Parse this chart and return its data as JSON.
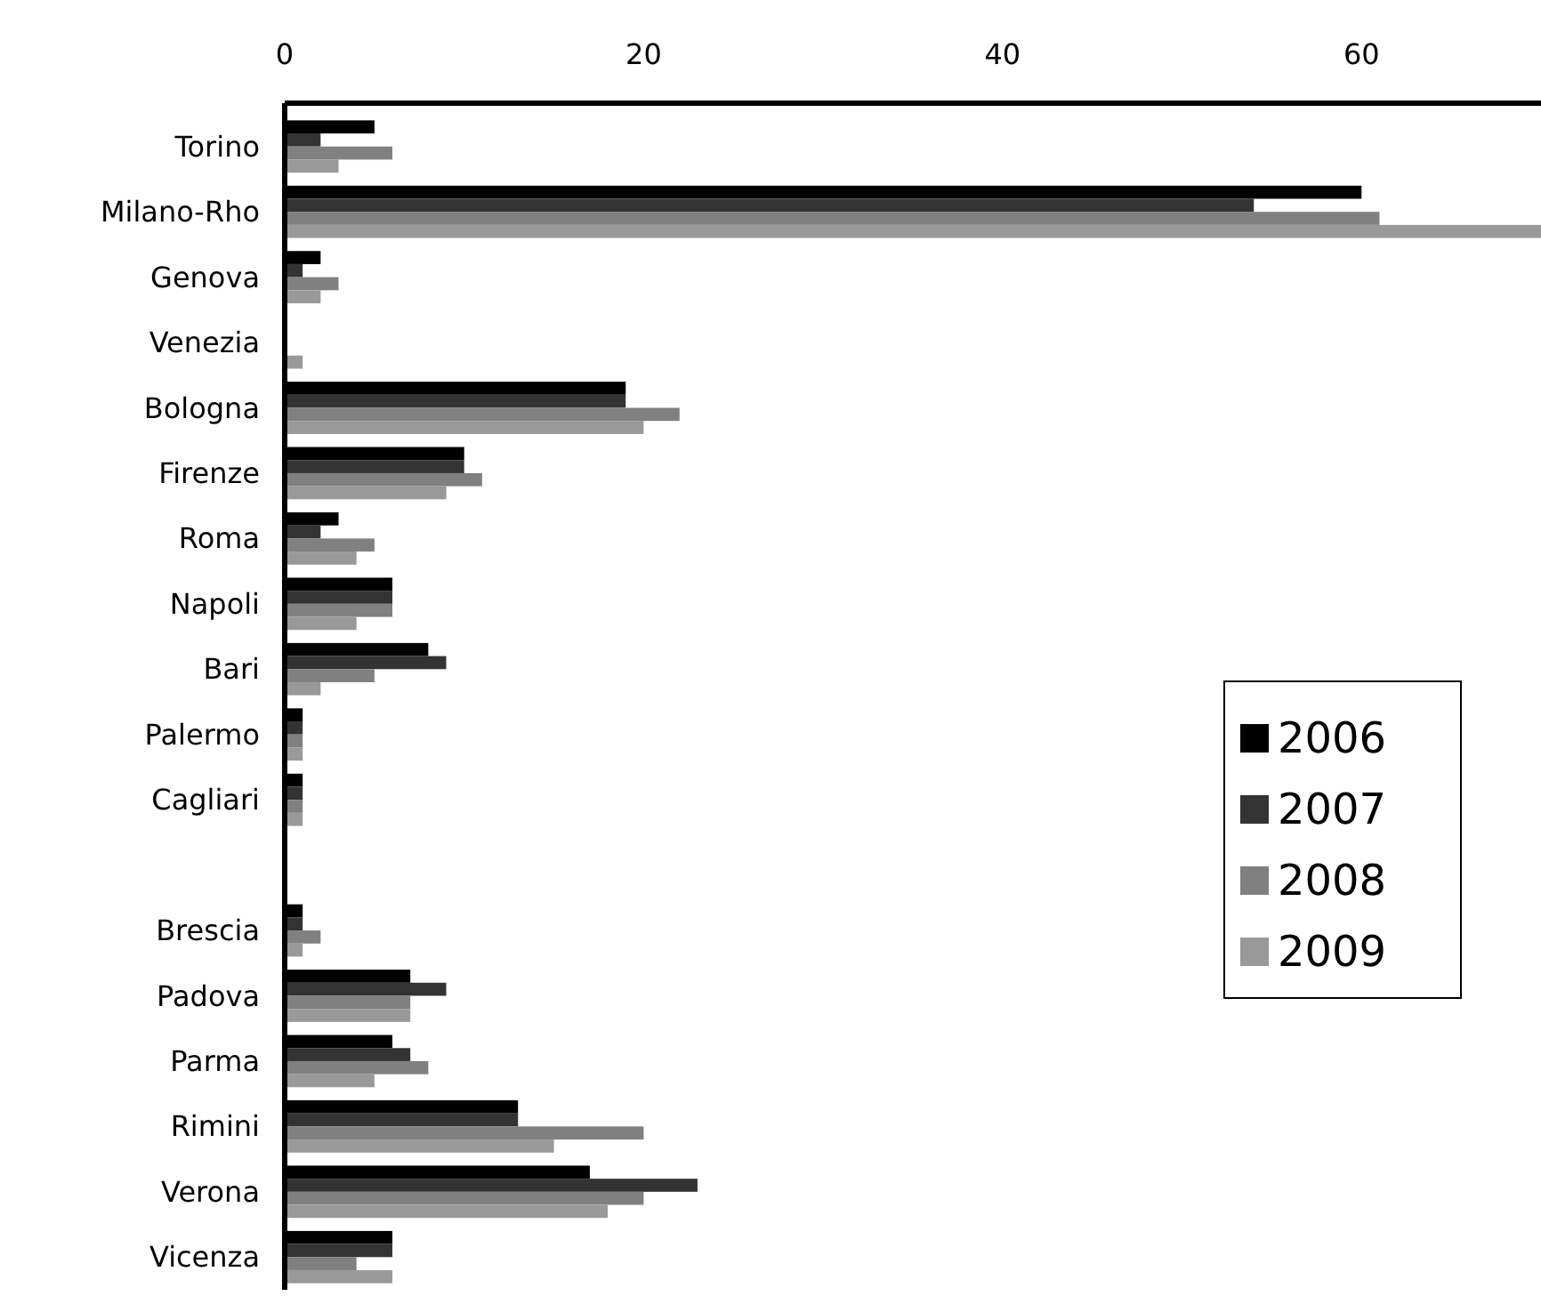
{
  "chart_data": {
    "type": "bar",
    "orientation": "horizontal",
    "categories": [
      "Torino",
      "Milano-Rho",
      "Genova",
      "Venezia",
      "Bologna",
      "Firenze",
      "Roma",
      "Napoli",
      "Bari",
      "Palermo",
      "Cagliari",
      null,
      "Brescia",
      "Padova",
      "Parma",
      "Rimini",
      "Verona",
      "Vicenza"
    ],
    "series": [
      {
        "name": "2006",
        "color": "#000000",
        "values": [
          5,
          60,
          2,
          0,
          19,
          10,
          3,
          6,
          8,
          1,
          1,
          null,
          1,
          7,
          6,
          13,
          17,
          6
        ]
      },
      {
        "name": "2007",
        "color": "#333333",
        "values": [
          2,
          54,
          1,
          0,
          19,
          10,
          2,
          6,
          9,
          1,
          1,
          null,
          1,
          9,
          7,
          13,
          23,
          6
        ]
      },
      {
        "name": "2008",
        "color": "#808080",
        "values": [
          6,
          61,
          3,
          0,
          22,
          11,
          5,
          6,
          5,
          1,
          1,
          null,
          2,
          7,
          8,
          20,
          20,
          4
        ]
      },
      {
        "name": "2009",
        "color": "#999999",
        "values": [
          3,
          70,
          2,
          1,
          20,
          9,
          4,
          4,
          2,
          1,
          1,
          null,
          1,
          7,
          5,
          15,
          18,
          6
        ]
      }
    ],
    "xlim": [
      0,
      70
    ],
    "xticks": [
      0,
      20,
      40,
      60
    ],
    "grid": false,
    "legend": "right"
  }
}
